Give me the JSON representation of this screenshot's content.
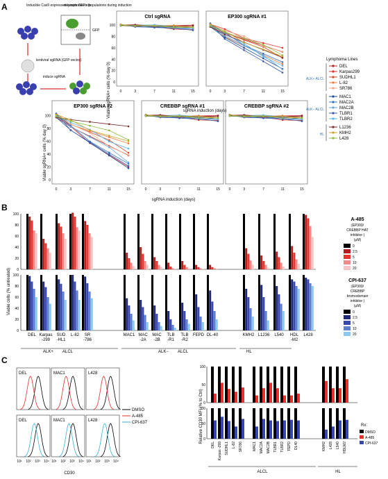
{
  "panels": {
    "a": "A",
    "b": "B",
    "c": "C"
  },
  "schematic": {
    "cells_label": "Inducible Cas9 expressed lymphoma cells",
    "measure_label": "measure GFP+ populations during induction",
    "gfp_label": "GFP",
    "lentiviral_label": "lentiviral sgRNA (GFP vector)",
    "induce_label": "induce sgRNA"
  },
  "panel_a": {
    "ylabel": "Viable sgRNA+ cells (% day 0)",
    "xlabel": "sgRNA induction (days)",
    "yticks": [
      "0",
      "20",
      "40",
      "60",
      "80",
      "100"
    ],
    "xticks": [
      "0",
      "3",
      "7",
      "11",
      "15"
    ],
    "titles": [
      "Ctrl sgRNA",
      "EP300 sgRNA #1",
      "EP300 sgRNA #2",
      "CREBBP sgRNA #1",
      "CREBBP sgRNA #2"
    ]
  },
  "legend": {
    "title": "Lymphoma Lines",
    "groups": [
      {
        "label": "ALK+ ALCL",
        "items": [
          "DEL",
          "Karpas299",
          "SUDHL1",
          "L-82",
          "SR786"
        ]
      },
      {
        "label": "ALK− ALCL",
        "items": [
          "MAC1",
          "MAC2A",
          "MAC2B",
          "TLBR1",
          "TLBR2"
        ]
      },
      {
        "label": "HL",
        "items": [
          "L1236",
          "KMH2",
          "L428"
        ]
      }
    ],
    "colors": [
      "#b22222",
      "#e8302c",
      "#d64b2a",
      "#f07a3a",
      "#f4a582",
      "#1f4e9c",
      "#2f73c4",
      "#6aa8dc",
      "#3b5ba9",
      "#5ab4e5",
      "#7a2a2a",
      "#c9a227",
      "#8fbc3f"
    ]
  },
  "panel_b": {
    "ylabel": "Viable cells (% untreated)",
    "yticks": [
      "0",
      "20",
      "40",
      "60",
      "80",
      "100"
    ],
    "cells": [
      "DEL",
      "Karpas -299",
      "SUD -HL1",
      "L-82",
      "SR -786",
      "MAC1",
      "MAC -2A",
      "MAC -2B",
      "TLB -R1",
      "TLB -R2",
      "FEPD",
      "DL-40",
      "KMH2",
      "L1236",
      "L540",
      "HDL -M2",
      "L428"
    ],
    "groups": [
      "ALK+ ALCL",
      "ALK− ALCL",
      "HL"
    ],
    "group_a": "ALK+",
    "group_a_sub": "ALCL",
    "group_b": "ALK−",
    "group_b_sub": "ALCL",
    "group_hl": "HL",
    "legend_top": {
      "title": "A-485",
      "sub": "(EP300/ CREBBP HAT inhibitor )",
      "unit": "(μM)",
      "doses": [
        "0",
        "2.5",
        "5",
        "10",
        "20"
      ],
      "colors": [
        "#000000",
        "#b81c1c",
        "#e8342c",
        "#f08a8a",
        "#f7c6c6"
      ]
    },
    "legend_bottom": {
      "title": "CPI-637",
      "sub": "(EP300/ CREBBP bromodomain inhibitor )",
      "unit": "(μM)",
      "doses": [
        "0",
        "2.5",
        "5",
        "10",
        "20"
      ],
      "colors": [
        "#000000",
        "#1e2a78",
        "#3846b0",
        "#5c7fd0",
        "#8cc8ef"
      ]
    }
  },
  "chart_data": [
    {
      "type": "bar",
      "title": "A-485",
      "categories": [
        "DEL",
        "Karpas -299",
        "SUD -HL1",
        "L-82",
        "SR -786",
        "MAC1",
        "MAC -2A",
        "MAC -2B",
        "TLB -R1",
        "TLB -R2",
        "FEPD",
        "DL-40",
        "KMH2",
        "L1236",
        "L540",
        "HDL -M2",
        "L428"
      ],
      "series": [
        {
          "name": "0",
          "values": [
            100,
            100,
            100,
            100,
            100,
            100,
            100,
            100,
            100,
            100,
            100,
            100,
            100,
            100,
            100,
            100,
            100
          ]
        },
        {
          "name": "2.5",
          "values": [
            95,
            55,
            83,
            102,
            87,
            30,
            40,
            22,
            12,
            15,
            8,
            8,
            38,
            25,
            32,
            42,
            98
          ]
        },
        {
          "name": "5",
          "values": [
            88,
            47,
            77,
            95,
            80,
            20,
            28,
            15,
            5,
            8,
            4,
            4,
            28,
            15,
            22,
            30,
            92
          ]
        },
        {
          "name": "10",
          "values": [
            70,
            38,
            65,
            76,
            65,
            12,
            15,
            8,
            2,
            4,
            2,
            2,
            16,
            8,
            12,
            18,
            78
          ]
        },
        {
          "name": "20",
          "values": [
            65,
            30,
            55,
            70,
            58,
            6,
            8,
            4,
            1,
            2,
            1,
            1,
            8,
            3,
            5,
            10,
            58
          ]
        }
      ],
      "ylim": [
        0,
        100
      ]
    },
    {
      "type": "bar",
      "title": "CPI-637",
      "categories": [
        "DEL",
        "Karpas -299",
        "SUD -HL1",
        "L-82",
        "SR -786",
        "MAC1",
        "MAC -2A",
        "MAC -2B",
        "TLB -R1",
        "TLB -R2",
        "FEPD",
        "DL-40",
        "KMH2",
        "L1236",
        "L540",
        "HDL -M2",
        "L428"
      ],
      "series": [
        {
          "name": "0",
          "values": [
            100,
            100,
            100,
            100,
            100,
            100,
            100,
            100,
            100,
            100,
            100,
            100,
            100,
            100,
            100,
            100,
            100
          ]
        },
        {
          "name": "2.5",
          "values": [
            98,
            88,
            92,
            100,
            97,
            58,
            55,
            45,
            35,
            50,
            65,
            72,
            75,
            82,
            80,
            92,
            95
          ]
        },
        {
          "name": "5",
          "values": [
            88,
            78,
            84,
            88,
            85,
            45,
            42,
            30,
            20,
            35,
            42,
            52,
            60,
            60,
            65,
            88,
            92
          ]
        },
        {
          "name": "10",
          "values": [
            75,
            60,
            70,
            72,
            70,
            30,
            28,
            15,
            10,
            20,
            25,
            35,
            40,
            35,
            48,
            80,
            85
          ]
        },
        {
          "name": "20",
          "values": [
            60,
            48,
            55,
            55,
            58,
            18,
            15,
            8,
            5,
            12,
            15,
            20,
            25,
            18,
            35,
            75,
            80
          ]
        }
      ],
      "ylim": [
        0,
        100
      ]
    },
    {
      "type": "line",
      "title": "CD30 histograms",
      "panels": [
        "DEL",
        "MAC1",
        "L428",
        "DEL",
        "MAC1",
        "L428"
      ],
      "series": [
        {
          "name": "DMSO",
          "peak_log10": [
            3.0,
            3.0,
            3.3,
            3.0,
            3.0,
            3.3
          ]
        },
        {
          "name": "A-485",
          "peak_log10": [
            2.2,
            2.3,
            2.6,
            null,
            null,
            null
          ]
        },
        {
          "name": "CPI-637",
          "peak_log10": [
            null,
            null,
            null,
            2.6,
            2.6,
            2.7
          ]
        }
      ],
      "xlabel": "CD30",
      "xticks": [
        "10¹",
        "10²",
        "10³",
        "10⁴"
      ],
      "legend": [
        "DMSO",
        "A-485",
        "CPI-637"
      ]
    },
    {
      "type": "bar",
      "title": "Relative CD30 MFI (% to Ctrl)",
      "categories": [
        "DEL",
        "Karpas -299",
        "SUDHL1",
        "L-82",
        "SR786",
        "MAC1",
        "MAC2A",
        "MAC2B",
        "TLBR1",
        "TLBR2",
        "FEPD",
        "DL40",
        "KMH2",
        "L428",
        "L540",
        "HDLM2"
      ],
      "series": [
        {
          "name": "DMSO",
          "values": [
            100,
            100,
            100,
            100,
            100,
            100,
            100,
            100,
            100,
            100,
            100,
            100,
            100,
            100,
            100,
            100
          ]
        },
        {
          "name": "A-485",
          "values": [
            25,
            55,
            38,
            30,
            42,
            20,
            40,
            55,
            40,
            20,
            20,
            25,
            60,
            40,
            40,
            65
          ]
        },
        {
          "name": "CPI-637",
          "values": [
            60,
            72,
            58,
            40,
            65,
            40,
            65,
            60,
            58,
            60,
            62,
            60,
            30,
            40,
            60,
            62
          ]
        }
      ],
      "ylim": [
        0,
        100
      ]
    }
  ],
  "panel_c": {
    "histo_labels": [
      "DEL",
      "MAC1",
      "L428",
      "DEL",
      "MAC1",
      "L428"
    ],
    "xlabel": "CD30",
    "xticks": [
      "10¹",
      "10²",
      "10³",
      "10⁴"
    ],
    "legend": [
      "DMSO",
      "A-485",
      "CPI-637"
    ],
    "legend_colors": [
      "#000000",
      "#e8302c",
      "#3bb0d8"
    ],
    "mfi_ylabel": "Relative CD30 MFI (% to Ctrl)",
    "mfi_yticks": [
      "0",
      "50",
      "100",
      "0",
      "50",
      "100"
    ],
    "rx_label": "Rx:",
    "rx_items": [
      "DMSO",
      "A-485",
      "CPI-637"
    ],
    "rx_colors": [
      "#000000",
      "#e8302c",
      "#3846b0"
    ],
    "group_alcl": "ALCL",
    "group_hl": "HL"
  }
}
